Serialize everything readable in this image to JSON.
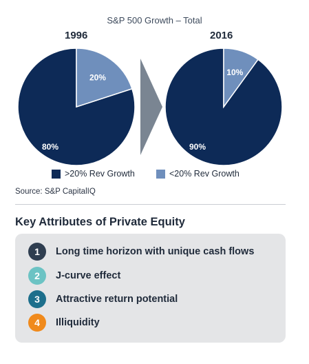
{
  "chart_data": {
    "type": "pie",
    "title": "S&P 500 Growth – Total",
    "legend": {
      "placement": "bottom",
      "entries": [
        {
          "label": ">20% Rev Growth",
          "color": "#0d2a57"
        },
        {
          "label": "<20% Rev Growth",
          "color": "#6f8fbc"
        }
      ]
    },
    "pies": [
      {
        "year": "1996",
        "slices": [
          {
            "label": ">20% Rev Growth",
            "value": 80,
            "display": "80%",
            "color": "#0d2a57"
          },
          {
            "label": "<20% Rev Growth",
            "value": 20,
            "display": "20%",
            "color": "#6f8fbc"
          }
        ]
      },
      {
        "year": "2016",
        "slices": [
          {
            "label": ">20% Rev Growth",
            "value": 90,
            "display": "90%",
            "color": "#0d2a57"
          },
          {
            "label": "<20% Rev Growth",
            "value": 10,
            "display": "10%",
            "color": "#6f8fbc"
          }
        ]
      }
    ],
    "source": "Source: S&P CapitalIQ"
  },
  "arrow_color": "#7a8592",
  "section": {
    "title": "Key Attributes of Private Equity",
    "items": [
      {
        "num": "1",
        "text": "Long time horizon with unique cash flows",
        "color": "#2f3e50"
      },
      {
        "num": "2",
        "text": "J-curve effect",
        "color": "#6cc3c4"
      },
      {
        "num": "3",
        "text": "Attractive return potential",
        "color": "#1d6f8c"
      },
      {
        "num": "4",
        "text": "Illiquidity",
        "color": "#f08a1c"
      }
    ]
  }
}
